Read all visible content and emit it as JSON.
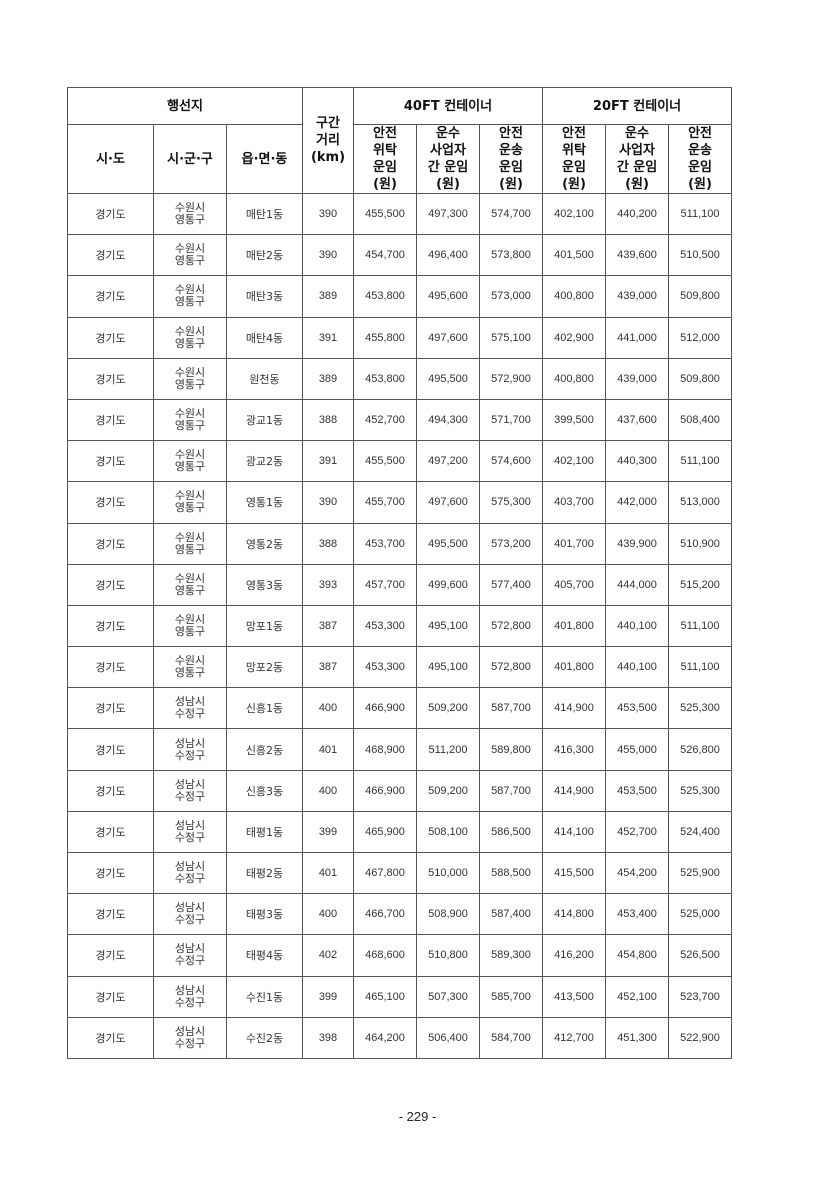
{
  "header": {
    "destination": "행선지",
    "distance": "구간\n거리\n(km)",
    "group_40ft": "40FT 컨테이너",
    "group_20ft": "20FT 컨테이너",
    "sido": "시·도",
    "sigungu": "시·군·구",
    "eupmyeondong": "읍·면·동",
    "col_safety_consign": "안전\n위탁\n운임\n(원)",
    "col_carrier": "운수\n사업자\n간 운임\n(원)",
    "col_safety_transport": "안전\n운송\n운임\n(원)"
  },
  "rows": [
    [
      "경기도",
      "수원시\n영통구",
      "매탄1동",
      "390",
      "455,500",
      "497,300",
      "574,700",
      "402,100",
      "440,200",
      "511,100"
    ],
    [
      "경기도",
      "수원시\n영통구",
      "매탄2동",
      "390",
      "454,700",
      "496,400",
      "573,800",
      "401,500",
      "439,600",
      "510,500"
    ],
    [
      "경기도",
      "수원시\n영통구",
      "매탄3동",
      "389",
      "453,800",
      "495,600",
      "573,000",
      "400,800",
      "439,000",
      "509,800"
    ],
    [
      "경기도",
      "수원시\n영통구",
      "매탄4동",
      "391",
      "455,800",
      "497,600",
      "575,100",
      "402,900",
      "441,000",
      "512,000"
    ],
    [
      "경기도",
      "수원시\n영통구",
      "원천동",
      "389",
      "453,800",
      "495,500",
      "572,900",
      "400,800",
      "439,000",
      "509,800"
    ],
    [
      "경기도",
      "수원시\n영통구",
      "광교1동",
      "388",
      "452,700",
      "494,300",
      "571,700",
      "399,500",
      "437,600",
      "508,400"
    ],
    [
      "경기도",
      "수원시\n영통구",
      "광교2동",
      "391",
      "455,500",
      "497,200",
      "574,600",
      "402,100",
      "440,300",
      "511,100"
    ],
    [
      "경기도",
      "수원시\n영통구",
      "영통1동",
      "390",
      "455,700",
      "497,600",
      "575,300",
      "403,700",
      "442,000",
      "513,000"
    ],
    [
      "경기도",
      "수원시\n영통구",
      "영통2동",
      "388",
      "453,700",
      "495,500",
      "573,200",
      "401,700",
      "439,900",
      "510,900"
    ],
    [
      "경기도",
      "수원시\n영통구",
      "영통3동",
      "393",
      "457,700",
      "499,600",
      "577,400",
      "405,700",
      "444,000",
      "515,200"
    ],
    [
      "경기도",
      "수원시\n영통구",
      "망포1동",
      "387",
      "453,300",
      "495,100",
      "572,800",
      "401,800",
      "440,100",
      "511,100"
    ],
    [
      "경기도",
      "수원시\n영통구",
      "망포2동",
      "387",
      "453,300",
      "495,100",
      "572,800",
      "401,800",
      "440,100",
      "511,100"
    ],
    [
      "경기도",
      "성남시\n수정구",
      "신흥1동",
      "400",
      "466,900",
      "509,200",
      "587,700",
      "414,900",
      "453,500",
      "525,300"
    ],
    [
      "경기도",
      "성남시\n수정구",
      "신흥2동",
      "401",
      "468,900",
      "511,200",
      "589,800",
      "416,300",
      "455,000",
      "526,800"
    ],
    [
      "경기도",
      "성남시\n수정구",
      "신흥3동",
      "400",
      "466,900",
      "509,200",
      "587,700",
      "414,900",
      "453,500",
      "525,300"
    ],
    [
      "경기도",
      "성남시\n수정구",
      "태평1동",
      "399",
      "465,900",
      "508,100",
      "586,500",
      "414,100",
      "452,700",
      "524,400"
    ],
    [
      "경기도",
      "성남시\n수정구",
      "태평2동",
      "401",
      "467,800",
      "510,000",
      "588,500",
      "415,500",
      "454,200",
      "525,900"
    ],
    [
      "경기도",
      "성남시\n수정구",
      "태평3동",
      "400",
      "466,700",
      "508,900",
      "587,400",
      "414,800",
      "453,400",
      "525,000"
    ],
    [
      "경기도",
      "성남시\n수정구",
      "태평4동",
      "402",
      "468,600",
      "510,800",
      "589,300",
      "416,200",
      "454,800",
      "526,500"
    ],
    [
      "경기도",
      "성남시\n수정구",
      "수진1동",
      "399",
      "465,100",
      "507,300",
      "585,700",
      "413,500",
      "452,100",
      "523,700"
    ],
    [
      "경기도",
      "성남시\n수정구",
      "수진2동",
      "398",
      "464,200",
      "506,400",
      "584,700",
      "412,700",
      "451,300",
      "522,900"
    ]
  ],
  "footer": {
    "page_number": "- 229 -"
  }
}
